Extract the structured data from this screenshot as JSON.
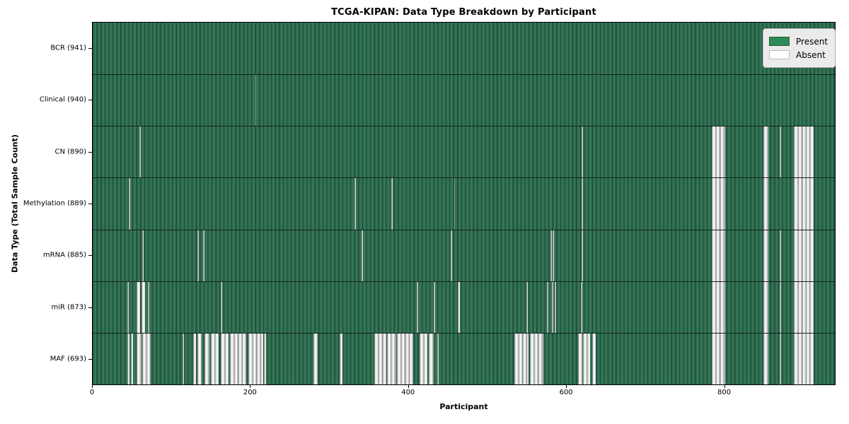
{
  "figure": {
    "title": "TCGA-KIPAN: Data Type Breakdown by Participant",
    "xlabel": "Participant",
    "ylabel": "Data Type (Total Sample Count)"
  },
  "legend": {
    "present_label": "Present",
    "absent_label": "Absent"
  },
  "colors": {
    "present_green": "#2e8b57",
    "present_cell_mid": "#2e6d4f",
    "present_cell_edge": "#1d4f38",
    "absent_fill": "#f5f5f5",
    "absent_edge": "#8f8f8f",
    "axis_color": "#000000",
    "legend_bg": "#ebebeb"
  },
  "chart_data": {
    "type": "heatmap",
    "title": "TCGA-KIPAN: Data Type Breakdown by Participant",
    "xlabel": "Participant",
    "ylabel": "Data Type (Total Sample Count)",
    "legend": [
      "Present",
      "Absent"
    ],
    "legend_position": "upper right",
    "grid": false,
    "x_range": [
      0,
      941
    ],
    "n_participants": 941,
    "x_ticks": [
      0,
      200,
      400,
      600,
      800
    ],
    "cell_states": [
      "present",
      "absent"
    ],
    "rows": [
      {
        "data_type": "BCR",
        "total_sample_count": 941,
        "label": "BCR (941)",
        "absent_ranges": []
      },
      {
        "data_type": "Clinical",
        "total_sample_count": 940,
        "label": "Clinical (940)",
        "absent_ranges": [
          [
            206,
            207
          ]
        ]
      },
      {
        "data_type": "CN",
        "total_sample_count": 890,
        "label": "CN (890)",
        "absent_ranges": [
          [
            59,
            61
          ],
          [
            620,
            621
          ],
          [
            785,
            802
          ],
          [
            850,
            857
          ],
          [
            871,
            872
          ],
          [
            889,
            914
          ]
        ]
      },
      {
        "data_type": "Methylation",
        "total_sample_count": 889,
        "label": "Methylation (889)",
        "absent_ranges": [
          [
            46,
            47
          ],
          [
            332,
            333
          ],
          [
            379,
            380
          ],
          [
            458,
            459
          ],
          [
            620,
            621
          ],
          [
            785,
            802
          ],
          [
            850,
            857
          ],
          [
            889,
            914
          ]
        ]
      },
      {
        "data_type": "mRNA",
        "total_sample_count": 885,
        "label": "mRNA (885)",
        "absent_ranges": [
          [
            63,
            65
          ],
          [
            133,
            134
          ],
          [
            140,
            142
          ],
          [
            341,
            343
          ],
          [
            454,
            456
          ],
          [
            580,
            582
          ],
          [
            583,
            585
          ],
          [
            620,
            621
          ],
          [
            785,
            802
          ],
          [
            850,
            857
          ],
          [
            871,
            872
          ],
          [
            889,
            914
          ]
        ]
      },
      {
        "data_type": "miR",
        "total_sample_count": 873,
        "label": "miR (873)",
        "absent_ranges": [
          [
            44,
            46
          ],
          [
            56,
            60
          ],
          [
            62,
            66
          ],
          [
            70,
            72
          ],
          [
            162,
            164
          ],
          [
            411,
            413
          ],
          [
            432,
            434
          ],
          [
            463,
            466
          ],
          [
            550,
            552
          ],
          [
            576,
            578
          ],
          [
            582,
            584
          ],
          [
            586,
            588
          ],
          [
            619,
            621
          ],
          [
            785,
            802
          ],
          [
            850,
            857
          ],
          [
            871,
            872
          ],
          [
            889,
            914
          ]
        ]
      },
      {
        "data_type": "MAF",
        "total_sample_count": 693,
        "label": "MAF (693)",
        "absent_ranges": [
          [
            44,
            47
          ],
          [
            48,
            51
          ],
          [
            56,
            62
          ],
          [
            63,
            74
          ],
          [
            114,
            116
          ],
          [
            127,
            131
          ],
          [
            133,
            138
          ],
          [
            142,
            148
          ],
          [
            150,
            160
          ],
          [
            162,
            172
          ],
          [
            174,
            195
          ],
          [
            197,
            216
          ],
          [
            217,
            220
          ],
          [
            280,
            285
          ],
          [
            313,
            317
          ],
          [
            357,
            372
          ],
          [
            373,
            385
          ],
          [
            386,
            406
          ],
          [
            414,
            424
          ],
          [
            426,
            432
          ],
          [
            437,
            439
          ],
          [
            535,
            553
          ],
          [
            554,
            571
          ],
          [
            615,
            621
          ],
          [
            622,
            631
          ],
          [
            633,
            638
          ],
          [
            785,
            802
          ],
          [
            850,
            857
          ],
          [
            871,
            872
          ],
          [
            889,
            914
          ]
        ]
      }
    ]
  }
}
